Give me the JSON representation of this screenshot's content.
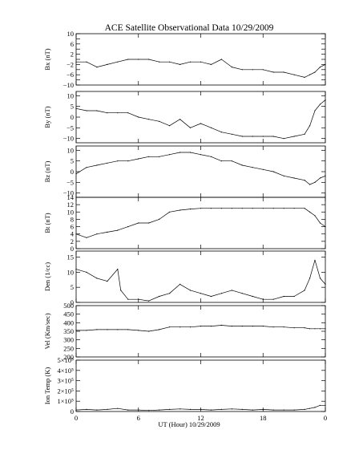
{
  "chart_data": {
    "type": "line",
    "title": "ACE Satellite Observational Data   10/29/2009",
    "xlabel": "UT (Hour)  10/29/2009",
    "x_ticks": [
      "0",
      "6",
      "12",
      "18",
      "0"
    ],
    "x_range": [
      0,
      24
    ],
    "panels": [
      {
        "name": "Bx (nT)",
        "ylim": [
          -10,
          10
        ],
        "y_ticks": [
          -10,
          -8,
          -6,
          -4,
          -2,
          0,
          2,
          4,
          6,
          8,
          10
        ],
        "y_tick_labels": [
          "−10",
          "−6",
          "−2",
          "2",
          "6",
          "10"
        ],
        "series": [
          {
            "x": [
              0,
              1,
              2,
              3,
              4,
              5,
              6,
              7,
              8,
              9,
              10,
              11,
              12,
              13,
              14,
              15,
              16,
              17,
              18,
              19,
              20,
              21,
              22,
              22.5,
              23,
              23.5,
              24
            ],
            "y": [
              -1,
              -1,
              -3,
              -2,
              -1,
              0,
              0,
              0,
              -1,
              -1,
              -2,
              -1,
              -1,
              -2,
              0,
              -3,
              -4,
              -4,
              -4,
              -5,
              -5,
              -6,
              -7,
              -6,
              -5,
              -3,
              -2
            ]
          }
        ]
      },
      {
        "name": "By (nT)",
        "ylim": [
          -12,
          12
        ],
        "y_ticks": [
          -10,
          -5,
          0,
          5,
          10
        ],
        "y_tick_labels": [
          "−10",
          "−5",
          "0",
          "5",
          "10"
        ],
        "series": [
          {
            "x": [
              0,
              1,
              2,
              3,
              4,
              5,
              6,
              7,
              8,
              9,
              10,
              11,
              12,
              13,
              14,
              15,
              16,
              17,
              18,
              19,
              20,
              21,
              22,
              22.5,
              23,
              23.5,
              24
            ],
            "y": [
              4,
              3,
              3,
              2,
              2,
              2,
              0,
              -1,
              -2,
              -4,
              -1,
              -5,
              -3,
              -5,
              -7,
              -8,
              -9,
              -9,
              -9,
              -9,
              -10,
              -9,
              -8,
              -4,
              3,
              6,
              8
            ]
          }
        ]
      },
      {
        "name": "Bz (nT)",
        "ylim": [
          -12,
          12
        ],
        "y_ticks": [
          -10,
          -5,
          0,
          5,
          10
        ],
        "y_tick_labels": [
          "−10",
          "−5",
          "0",
          "5",
          "10"
        ],
        "series": [
          {
            "x": [
              0,
              1,
              2,
              3,
              4,
              5,
              6,
              7,
              8,
              9,
              10,
              11,
              12,
              13,
              14,
              15,
              16,
              17,
              18,
              19,
              20,
              21,
              22,
              22.5,
              23,
              23.5,
              24
            ],
            "y": [
              -1,
              2,
              3,
              4,
              5,
              5,
              6,
              7,
              7,
              8,
              9,
              9,
              8,
              7,
              5,
              5,
              3,
              2,
              1,
              0,
              -2,
              -3,
              -4,
              -6,
              -5,
              -3,
              -2
            ]
          }
        ]
      },
      {
        "name": "Bt (nT)",
        "ylim": [
          0,
          14
        ],
        "y_ticks": [
          0,
          2,
          4,
          6,
          8,
          10,
          12,
          14
        ],
        "y_tick_labels": [
          "0",
          "2",
          "4",
          "6",
          "8",
          "10",
          "12",
          "14"
        ],
        "series": [
          {
            "x": [
              0,
              1,
              2,
              3,
              4,
              5,
              6,
              7,
              8,
              9,
              10,
              11,
              12,
              13,
              14,
              15,
              16,
              17,
              18,
              19,
              20,
              21,
              22,
              22.5,
              23,
              23.5,
              24
            ],
            "y": [
              4,
              3,
              4,
              4.5,
              5,
              6,
              7,
              7,
              8,
              10,
              10.5,
              10.8,
              11,
              11,
              11,
              11,
              11,
              11,
              11,
              11,
              11,
              11,
              11,
              10,
              9,
              7,
              6
            ]
          }
        ]
      },
      {
        "name": "Den (1/cc)",
        "ylim": [
          0,
          17
        ],
        "y_ticks": [
          0,
          5,
          10,
          15
        ],
        "y_tick_labels": [
          "0",
          "5",
          "10",
          "15"
        ],
        "series": [
          {
            "x": [
              0,
              1,
              2,
              3,
              4,
              4.3,
              5,
              6,
              7,
              8,
              9,
              10,
              11,
              12,
              13,
              14,
              15,
              16,
              17,
              18,
              19,
              20,
              21,
              22,
              22.5,
              23,
              23.5,
              24
            ],
            "y": [
              11,
              10,
              8,
              7,
              11,
              4,
              1,
              1,
              0.5,
              2,
              3,
              6,
              4,
              3,
              2,
              3,
              4,
              3,
              2,
              1,
              1,
              2,
              2,
              4,
              8,
              14,
              8,
              6
            ]
          }
        ]
      },
      {
        "name": "Vel (Km/sec)",
        "ylim": [
          200,
          500
        ],
        "y_ticks": [
          200,
          250,
          300,
          350,
          400,
          450,
          500
        ],
        "y_tick_labels": [
          "200",
          "250",
          "300",
          "350",
          "400",
          "450",
          "500"
        ],
        "series": [
          {
            "x": [
              0,
              1,
              2,
              3,
              4,
              5,
              6,
              7,
              8,
              9,
              10,
              11,
              12,
              13,
              14,
              15,
              16,
              17,
              18,
              19,
              20,
              21,
              22,
              22.5,
              23,
              23.5,
              24
            ],
            "y": [
              355,
              355,
              360,
              360,
              360,
              360,
              355,
              350,
              360,
              375,
              375,
              375,
              380,
              380,
              385,
              380,
              380,
              380,
              380,
              375,
              375,
              370,
              370,
              365,
              365,
              365,
              365
            ]
          }
        ]
      },
      {
        "name": "Ion Temp (K)",
        "ylim": [
          0,
          500000
        ],
        "y_ticks": [
          0,
          100000,
          200000,
          300000,
          400000,
          500000
        ],
        "y_tick_labels": [
          "0",
          "1×10⁵",
          "2×10⁵",
          "3×10⁵",
          "4×10⁵",
          "5×10⁵"
        ],
        "series": [
          {
            "x": [
              0,
              1,
              2,
              3,
              4,
              5,
              6,
              7,
              8,
              9,
              10,
              11,
              12,
              13,
              14,
              15,
              16,
              17,
              18,
              19,
              20,
              21,
              22,
              22.5,
              23,
              23.5,
              24
            ],
            "y": [
              15000,
              20000,
              15000,
              20000,
              30000,
              15000,
              15000,
              10000,
              15000,
              20000,
              25000,
              20000,
              20000,
              15000,
              20000,
              25000,
              20000,
              15000,
              20000,
              15000,
              15000,
              15000,
              20000,
              30000,
              40000,
              60000,
              60000
            ]
          }
        ]
      }
    ]
  }
}
